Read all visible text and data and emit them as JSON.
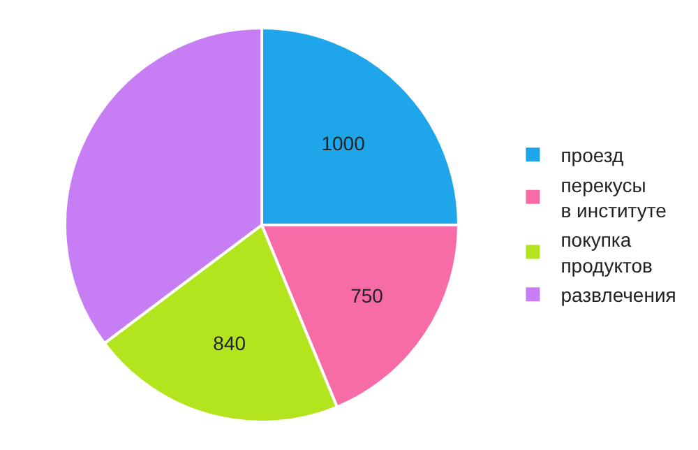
{
  "chart_data": {
    "type": "pie",
    "categories": [
      "проезд",
      "перекусы\nв институте",
      "покупка\nпродуктов",
      "развлечения"
    ],
    "values": [
      1000,
      750,
      840,
      1410
    ],
    "value_labels": [
      "1000",
      "750",
      "840",
      null
    ],
    "colors": [
      "#1ea5ea",
      "#f76ba6",
      "#b3e51f",
      "#c77ef5"
    ],
    "legend": "right"
  }
}
